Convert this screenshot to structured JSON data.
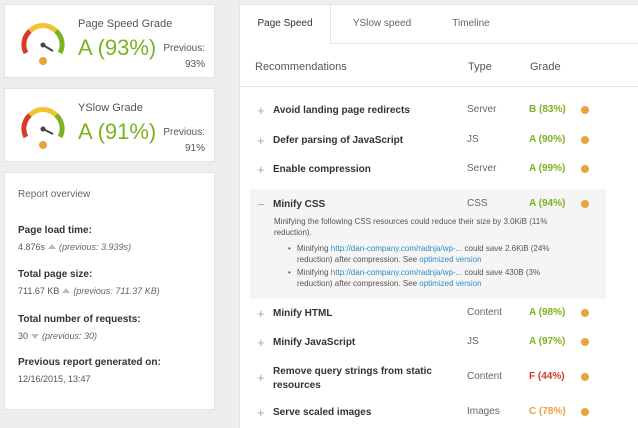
{
  "page_speed": {
    "label": "Page Speed Grade",
    "grade": "A (93%)",
    "previous_label": "Previous:",
    "previous_value": "93%",
    "score": 0.93
  },
  "yslow": {
    "label": "YSlow Grade",
    "grade": "A (91%)",
    "previous_label": "Previous:",
    "previous_value": "91%",
    "score": 0.91
  },
  "overview": {
    "title": "Report overview",
    "load_time_label": "Page load time:",
    "load_time": "4.876s",
    "load_time_prev": "(previous: 3.939s)",
    "page_size_label": "Total page size:",
    "page_size": "711.67 KB",
    "page_size_prev": "(previous: 711.37 KB)",
    "requests_label": "Total number of requests:",
    "requests": "30",
    "requests_prev": "(previous: 30)",
    "generated_label": "Previous report generated on:",
    "generated": "12/16/2015, 13:47"
  },
  "tabs": [
    "Page Speed",
    "YSlow speed",
    "Timeline"
  ],
  "table": {
    "headers": {
      "recommendations": "Recommendations",
      "type": "Type",
      "grade": "Grade"
    },
    "rows": [
      {
        "name": "Avoid landing page redirects",
        "type": "Server",
        "grade": "B (83%)",
        "color": "#7ab320"
      },
      {
        "name": "Defer parsing of JavaScript",
        "type": "JS",
        "grade": "A (90%)",
        "color": "#7ab320"
      },
      {
        "name": "Enable compression",
        "type": "Server",
        "grade": "A (99%)",
        "color": "#7ab320"
      },
      {
        "name": "Minify CSS",
        "type": "CSS",
        "grade": "A (94%)",
        "color": "#7ab320"
      },
      {
        "name": "Minify HTML",
        "type": "Content",
        "grade": "A (98%)",
        "color": "#7ab320"
      },
      {
        "name": "Minify JavaScript",
        "type": "JS",
        "grade": "A (97%)",
        "color": "#7ab320"
      },
      {
        "name": "Remove query strings from static resources",
        "type": "Content",
        "grade": "F (44%)",
        "color": "#d63b2a"
      },
      {
        "name": "Serve scaled images",
        "type": "Images",
        "grade": "C (78%)",
        "color": "#e8a33c"
      }
    ],
    "expanded": {
      "description": "Minifying the following CSS resources could reduce their size by 3.0KiB (11% reduction).",
      "items": [
        {
          "prefix": "Minifying ",
          "link": "http://dan-company.com/radnja/wp-...",
          "suffix": " could save 2.6KiB (24% reduction) after compression. See ",
          "link2": "optimized version"
        },
        {
          "prefix": "Minifying ",
          "link": "http://dan-company.com/radnja/wp-...",
          "suffix": " could save 430B (3% reduction) after compression. See ",
          "link2": "optimized version"
        }
      ]
    }
  }
}
